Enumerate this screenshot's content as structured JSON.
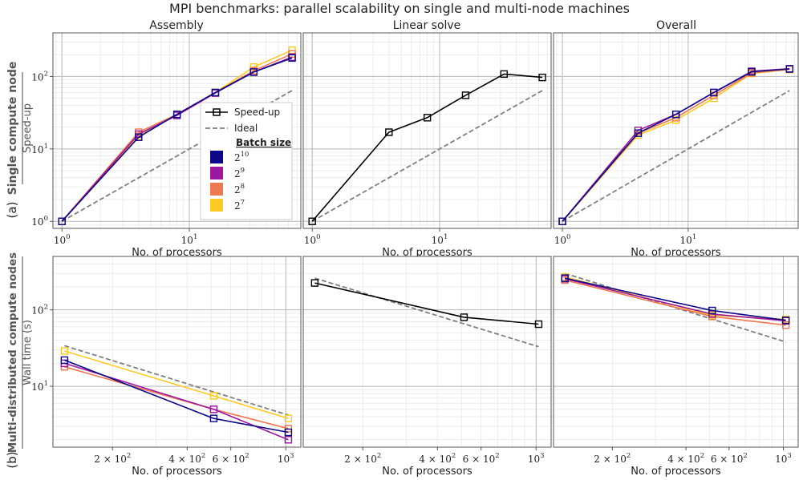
{
  "title": "MPI benchmarks: parallel scalability on single and multi-node machines",
  "columns": [
    "Assembly",
    "Linear solve",
    "Overall"
  ],
  "rows": [
    {
      "tag": "(a)",
      "name": "Single compute node",
      "ylabel": "Speed-up",
      "xlabel": "No. of processors"
    },
    {
      "tag": "(b)",
      "name": "Multi-distributed compute nodes",
      "ylabel": "Wall time (s)",
      "xlabel": "No. of processors"
    }
  ],
  "legend": {
    "speedup": "Speed-up",
    "ideal": "Ideal",
    "batch_title": "Batch size",
    "batch": [
      {
        "base": "2",
        "exp": "10",
        "color": "#0d0887"
      },
      {
        "base": "2",
        "exp": "9",
        "color": "#9c179e"
      },
      {
        "base": "2",
        "exp": "8",
        "color": "#ed7953"
      },
      {
        "base": "2",
        "exp": "7",
        "color": "#fdca26"
      }
    ]
  },
  "colors": {
    "black": "#000000",
    "ideal": "#808080"
  },
  "chart_data": [
    {
      "type": "line",
      "panel": "a-assembly",
      "xscale": "log",
      "yscale": "log",
      "xlim": [
        0.85,
        75
      ],
      "ylim": [
        0.8,
        400
      ],
      "xticks": [
        {
          "v": 1,
          "b": "10",
          "e": "0"
        },
        {
          "v": 10,
          "b": "10",
          "e": "1"
        }
      ],
      "yticks": [
        {
          "v": 1,
          "b": "10",
          "e": "0"
        },
        {
          "v": 10,
          "b": "10",
          "e": "1"
        },
        {
          "v": 100,
          "b": "10",
          "e": "2"
        }
      ],
      "ideal": {
        "x": [
          1,
          64
        ],
        "y": [
          1,
          64
        ]
      },
      "series": [
        {
          "name": "2^7",
          "color": "#fdca26",
          "x": [
            1,
            4,
            8,
            16,
            32,
            64
          ],
          "y": [
            1,
            15,
            30,
            60,
            135,
            230
          ]
        },
        {
          "name": "2^8",
          "color": "#ed7953",
          "x": [
            1,
            4,
            8,
            16,
            32,
            64
          ],
          "y": [
            1,
            17,
            30,
            60,
            120,
            205
          ]
        },
        {
          "name": "2^9",
          "color": "#9c179e",
          "x": [
            1,
            4,
            8,
            16,
            32,
            64
          ],
          "y": [
            1,
            16,
            29,
            59,
            115,
            185
          ]
        },
        {
          "name": "2^10",
          "color": "#0d0887",
          "x": [
            1,
            4,
            8,
            16,
            32,
            64
          ],
          "y": [
            1,
            14.5,
            30,
            60,
            115,
            180
          ]
        }
      ]
    },
    {
      "type": "line",
      "panel": "a-linear",
      "xscale": "log",
      "yscale": "log",
      "xlim": [
        0.85,
        75
      ],
      "ylim": [
        0.8,
        400
      ],
      "xticks": [
        {
          "v": 1,
          "b": "10",
          "e": "0"
        },
        {
          "v": 10,
          "b": "10",
          "e": "1"
        }
      ],
      "yticks": [],
      "ideal": {
        "x": [
          1,
          64
        ],
        "y": [
          1,
          64
        ]
      },
      "series": [
        {
          "name": "Speed-up",
          "color": "#000000",
          "x": [
            1,
            4,
            8,
            16,
            32,
            64
          ],
          "y": [
            1,
            17,
            27,
            55,
            108,
            97
          ]
        }
      ]
    },
    {
      "type": "line",
      "panel": "a-overall",
      "xscale": "log",
      "yscale": "log",
      "xlim": [
        0.85,
        75
      ],
      "ylim": [
        0.8,
        400
      ],
      "xticks": [
        {
          "v": 1,
          "b": "10",
          "e": "0"
        },
        {
          "v": 10,
          "b": "10",
          "e": "1"
        }
      ],
      "yticks": [],
      "ideal": {
        "x": [
          1,
          64
        ],
        "y": [
          1,
          64
        ]
      },
      "series": [
        {
          "name": "2^7",
          "color": "#fdca26",
          "x": [
            1,
            4,
            8,
            16,
            32,
            64
          ],
          "y": [
            1,
            15.5,
            25,
            50,
            110,
            125
          ]
        },
        {
          "name": "2^8",
          "color": "#ed7953",
          "x": [
            1,
            4,
            8,
            16,
            32,
            64
          ],
          "y": [
            1,
            16.5,
            27,
            55,
            112,
            126
          ]
        },
        {
          "name": "2^9",
          "color": "#9c179e",
          "x": [
            1,
            4,
            8,
            16,
            32,
            64
          ],
          "y": [
            1,
            18,
            30,
            60,
            118,
            128
          ]
        },
        {
          "name": "2^10",
          "color": "#0d0887",
          "x": [
            1,
            4,
            8,
            16,
            32,
            64
          ],
          "y": [
            1,
            16.5,
            30,
            60,
            116,
            127
          ]
        }
      ]
    },
    {
      "type": "line",
      "panel": "b-assembly",
      "xscale": "log",
      "yscale": "log",
      "xlim": [
        115,
        1150
      ],
      "ylim": [
        1.6,
        500
      ],
      "xticks": [
        {
          "v": 200,
          "b": "2 × 10",
          "e": "2"
        },
        {
          "v": 400,
          "b": "4 × 10",
          "e": "2"
        },
        {
          "v": 600,
          "b": "6 × 10",
          "e": "2"
        },
        {
          "v": 1000,
          "b": "10",
          "e": "3"
        }
      ],
      "yticks": [
        {
          "v": 10,
          "b": "10",
          "e": "1"
        },
        {
          "v": 100,
          "b": "10",
          "e": "2"
        }
      ],
      "ideal": {
        "x": [
          128,
          1024
        ],
        "y": [
          34,
          4.2
        ]
      },
      "series": [
        {
          "name": "2^7",
          "color": "#fdca26",
          "x": [
            128,
            512,
            1024
          ],
          "y": [
            29,
            7.5,
            3.8
          ]
        },
        {
          "name": "2^8",
          "color": "#ed7953",
          "x": [
            128,
            512,
            1024
          ],
          "y": [
            18,
            5,
            2.8
          ]
        },
        {
          "name": "2^9",
          "color": "#9c179e",
          "x": [
            128,
            512,
            1024
          ],
          "y": [
            20,
            5,
            2
          ]
        },
        {
          "name": "2^10",
          "color": "#0d0887",
          "x": [
            128,
            512,
            1024
          ],
          "y": [
            22,
            3.8,
            2.5
          ]
        }
      ]
    },
    {
      "type": "line",
      "panel": "b-linear",
      "xscale": "log",
      "yscale": "log",
      "xlim": [
        115,
        1150
      ],
      "ylim": [
        1.6,
        500
      ],
      "xticks": [
        {
          "v": 200,
          "b": "2 × 10",
          "e": "2"
        },
        {
          "v": 400,
          "b": "4 × 10",
          "e": "2"
        },
        {
          "v": 600,
          "b": "6 × 10",
          "e": "2"
        },
        {
          "v": 1000,
          "b": "10",
          "e": "3"
        }
      ],
      "yticks": [],
      "ideal": {
        "x": [
          128,
          1024
        ],
        "y": [
          260,
          33
        ]
      },
      "series": [
        {
          "name": "Speed-up",
          "color": "#000000",
          "x": [
            128,
            512,
            1024
          ],
          "y": [
            225,
            80,
            65
          ]
        }
      ]
    },
    {
      "type": "line",
      "panel": "b-overall",
      "xscale": "log",
      "yscale": "log",
      "xlim": [
        115,
        1150
      ],
      "ylim": [
        1.6,
        500
      ],
      "xticks": [
        {
          "v": 200,
          "b": "2 × 10",
          "e": "2"
        },
        {
          "v": 400,
          "b": "4 × 10",
          "e": "2"
        },
        {
          "v": 600,
          "b": "6 × 10",
          "e": "2"
        },
        {
          "v": 1000,
          "b": "10",
          "e": "3"
        }
      ],
      "yticks": [],
      "ideal": {
        "x": [
          128,
          1024
        ],
        "y": [
          300,
          38
        ]
      },
      "series": [
        {
          "name": "2^7",
          "color": "#fdca26",
          "x": [
            128,
            512,
            1024
          ],
          "y": [
            270,
            85,
            75
          ]
        },
        {
          "name": "2^8",
          "color": "#ed7953",
          "x": [
            128,
            512,
            1024
          ],
          "y": [
            245,
            82,
            63
          ]
        },
        {
          "name": "2^9",
          "color": "#9c179e",
          "x": [
            128,
            512,
            1024
          ],
          "y": [
            255,
            88,
            72
          ]
        },
        {
          "name": "2^10",
          "color": "#0d0887",
          "x": [
            128,
            512,
            1024
          ],
          "y": [
            260,
            98,
            73
          ]
        }
      ]
    }
  ]
}
